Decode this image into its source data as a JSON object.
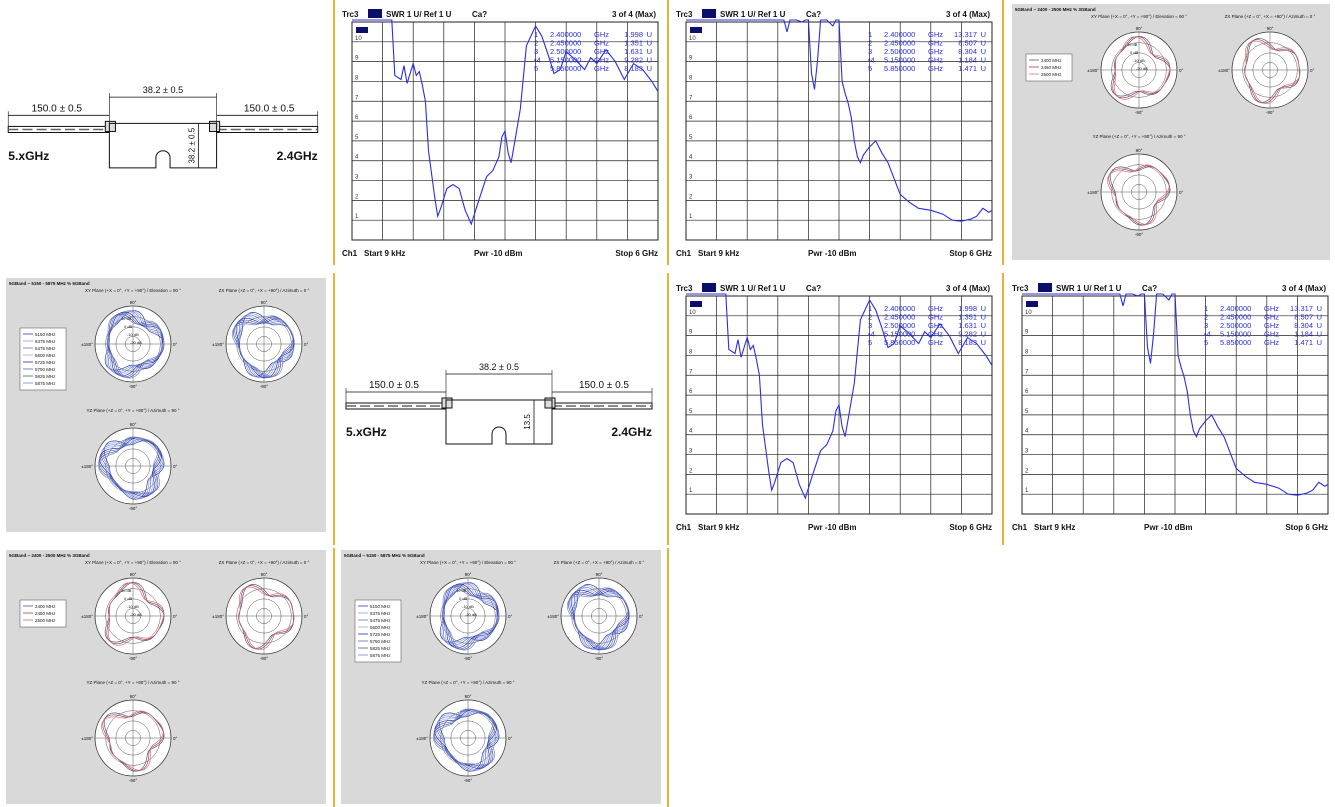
{
  "colors": {
    "accent_separator": "#e9b23a",
    "trace": "#2a2ee0",
    "marker_bg": "#0b0f6a",
    "panel_gray": "#d9d9d9"
  },
  "drawings": [
    {
      "dim_top": "38.2 ± 0.5",
      "dim_left": "150.0 ± 0.5",
      "dim_right": "150.0 ± 0.5",
      "dim_vertical": "38.2 ± 0.5",
      "label_left": "5.xGHz",
      "label_right": "2.4GHz"
    },
    {
      "dim_top": "38.2 ± 0.5",
      "dim_left": "150.0 ± 0.5",
      "dim_right": "150.0 ± 0.5",
      "dim_vertical": "13.5",
      "label_left": "5.xGHz",
      "label_right": "2.4GHz"
    }
  ],
  "swr_charts": [
    {
      "header": {
        "trace": "Trc3",
        "format": "SWR  1 U/  Ref 1 U",
        "cal": "Ca?",
        "page": "3 of 4 (Max)"
      },
      "footer": {
        "channel": "Ch1",
        "start": "Start  9 kHz",
        "power": "Pwr -10 dBm",
        "stop": "Stop  6 GHz"
      },
      "y_ticks": [
        "10",
        "9",
        "8",
        "7",
        "6",
        "5",
        "4",
        "3",
        "2",
        "1"
      ],
      "markers": [
        {
          "n": "1",
          "freq": "2.400000",
          "unit": "GHz",
          "val": "1.998",
          "vunit": "U"
        },
        {
          "n": "2",
          "freq": "2.450000",
          "unit": "GHz",
          "val": "1.351",
          "vunit": "U"
        },
        {
          "n": "3",
          "freq": "2.500000",
          "unit": "GHz",
          "val": "1.631",
          "vunit": "U"
        },
        {
          "n": "•4",
          "freq": "5.150000",
          "unit": "GHz",
          "val": "9.282",
          "vunit": "U"
        },
        {
          "n": "5",
          "freq": "5.850000",
          "unit": "GHz",
          "val": "8.183",
          "vunit": "U"
        }
      ],
      "curve": [
        [
          0.0,
          12
        ],
        [
          0.13,
          12
        ],
        [
          0.14,
          8.3
        ],
        [
          0.16,
          8.1
        ],
        [
          0.17,
          8.8
        ],
        [
          0.18,
          7.9
        ],
        [
          0.19,
          8.4
        ],
        [
          0.2,
          8.9
        ],
        [
          0.21,
          8.3
        ],
        [
          0.22,
          8.5
        ],
        [
          0.23,
          7.8
        ],
        [
          0.24,
          7.0
        ],
        [
          0.25,
          4.5
        ],
        [
          0.27,
          2.2
        ],
        [
          0.28,
          1.2
        ],
        [
          0.29,
          1.6
        ],
        [
          0.31,
          2.6
        ],
        [
          0.33,
          2.8
        ],
        [
          0.35,
          2.6
        ],
        [
          0.37,
          1.5
        ],
        [
          0.39,
          0.8
        ],
        [
          0.41,
          1.8
        ],
        [
          0.44,
          3.2
        ],
        [
          0.46,
          3.5
        ],
        [
          0.48,
          4.2
        ],
        [
          0.49,
          5.2
        ],
        [
          0.5,
          5.5
        ],
        [
          0.51,
          4.4
        ],
        [
          0.52,
          3.9
        ],
        [
          0.53,
          4.8
        ],
        [
          0.55,
          6.6
        ],
        [
          0.57,
          9.8
        ],
        [
          0.6,
          10.8
        ],
        [
          0.62,
          10.3
        ],
        [
          0.64,
          9.4
        ],
        [
          0.66,
          8.4
        ],
        [
          0.68,
          8.6
        ],
        [
          0.7,
          9.5
        ],
        [
          0.73,
          9.1
        ],
        [
          0.76,
          8.6
        ],
        [
          0.78,
          9.2
        ],
        [
          0.8,
          8.9
        ],
        [
          0.83,
          9.6
        ],
        [
          0.86,
          9.0
        ],
        [
          0.89,
          8.1
        ],
        [
          0.92,
          8.9
        ],
        [
          0.95,
          8.6
        ],
        [
          0.98,
          8.0
        ],
        [
          1.0,
          7.5
        ]
      ]
    },
    {
      "header": {
        "trace": "Trc3",
        "format": "SWR  1 U/  Ref 1 U",
        "cal": "Ca?",
        "page": "3 of 4 (Max)"
      },
      "footer": {
        "channel": "Ch1",
        "start": "Start  9 kHz",
        "power": "Pwr -10 dBm",
        "stop": "Stop  6 GHz"
      },
      "y_ticks": [
        "10",
        "9",
        "8",
        "7",
        "6",
        "5",
        "4",
        "3",
        "2",
        "1"
      ],
      "markers": [
        {
          "n": "1",
          "freq": "2.400000",
          "unit": "GHz",
          "val": "13.317",
          "vunit": "U"
        },
        {
          "n": "2",
          "freq": "2.450000",
          "unit": "GHz",
          "val": "8.507",
          "vunit": "U"
        },
        {
          "n": "3",
          "freq": "2.500000",
          "unit": "GHz",
          "val": "8.304",
          "vunit": "U"
        },
        {
          "n": "•4",
          "freq": "5.150000",
          "unit": "GHz",
          "val": "1.184",
          "vunit": "U"
        },
        {
          "n": "5",
          "freq": "5.850000",
          "unit": "GHz",
          "val": "1.471",
          "vunit": "U"
        }
      ],
      "curve": [
        [
          0.0,
          12
        ],
        [
          0.3,
          12
        ],
        [
          0.32,
          11.5
        ],
        [
          0.33,
          10.5
        ],
        [
          0.34,
          11.8
        ],
        [
          0.35,
          11.2
        ],
        [
          0.36,
          11.6
        ],
        [
          0.38,
          11.0
        ],
        [
          0.39,
          11.8
        ],
        [
          0.4,
          11.5
        ],
        [
          0.41,
          8.4
        ],
        [
          0.42,
          7.6
        ],
        [
          0.43,
          9.1
        ],
        [
          0.44,
          12
        ],
        [
          0.46,
          11.4
        ],
        [
          0.48,
          10.8
        ],
        [
          0.49,
          11.6
        ],
        [
          0.5,
          12
        ],
        [
          0.51,
          8.0
        ],
        [
          0.52,
          7.4
        ],
        [
          0.53,
          6.9
        ],
        [
          0.54,
          6.2
        ],
        [
          0.55,
          5.0
        ],
        [
          0.56,
          4.2
        ],
        [
          0.57,
          3.9
        ],
        [
          0.58,
          4.3
        ],
        [
          0.6,
          4.7
        ],
        [
          0.62,
          5.0
        ],
        [
          0.64,
          4.4
        ],
        [
          0.66,
          3.9
        ],
        [
          0.68,
          3.1
        ],
        [
          0.7,
          2.3
        ],
        [
          0.73,
          1.9
        ],
        [
          0.76,
          1.6
        ],
        [
          0.8,
          1.5
        ],
        [
          0.84,
          1.3
        ],
        [
          0.87,
          1.0
        ],
        [
          0.9,
          0.95
        ],
        [
          0.93,
          1.05
        ],
        [
          0.95,
          1.2
        ],
        [
          0.97,
          1.6
        ],
        [
          0.99,
          1.4
        ],
        [
          1.0,
          1.5
        ]
      ]
    }
  ],
  "polar_small": {
    "title": "5GBand ~ 2400 - 2500 MHz % 3GBand",
    "xy_title": "XY Plane (+X = 0°, +Y = +90°) / Elevation = 90 °",
    "zx_title": "ZX Plane (+Z = 0°, +X = +90°) / Azimuth = 0 °",
    "yz_title": "YZ Plane (+Z = 0°, +Y = +90°) / Azimuth = 90 °",
    "legend": [
      "2400 MHz",
      "2450 MHz",
      "2500 MHz"
    ],
    "r_labels": [
      "10 dB",
      "0 dB",
      "-10 dB",
      "-20 dB"
    ],
    "angles": {
      "top": "90°",
      "bottom": "-90°",
      "left": "±180°",
      "right": "0°"
    }
  },
  "polar_large": {
    "title": "5GBand ~ 5150 - 5875 MHz % 5GBand",
    "xy_title": "XY Plane (+X = 0°, +Y = +90°) / Elevation = 90 °",
    "zx_title": "ZX Plane (+Z = 0°, +X = +90°) / Azimuth = 0 °",
    "yz_title": "YZ Plane (+Z = 0°, +Y = +90°) / Azimuth = 90 °",
    "legend": [
      "5150 MHz",
      "5375 MHz",
      "5475 MHz",
      "5600 MHz",
      "5725 MHz",
      "5750 MHz",
      "5825 MHz",
      "5875 MHz"
    ],
    "r_labels": [
      "10 dB",
      "0 dB",
      "-10 dB",
      "-20 dB"
    ],
    "angles": {
      "top": "90°",
      "bottom": "-90°",
      "left": "±180°",
      "right": "0°"
    }
  }
}
